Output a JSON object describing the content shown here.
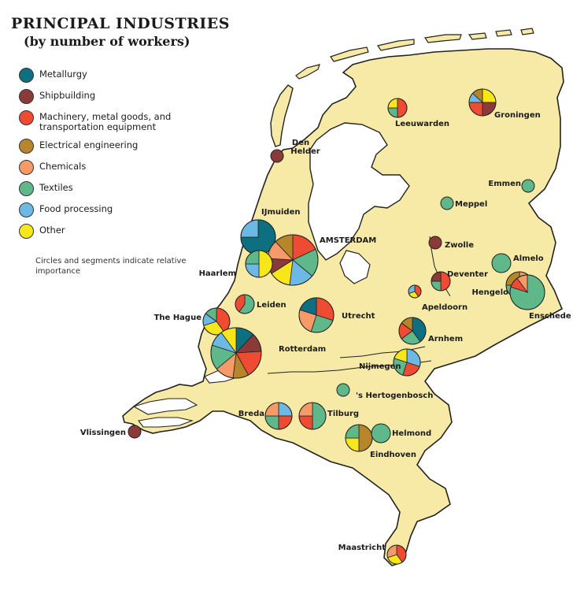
{
  "title": "PRINCIPAL INDUSTRIES",
  "subtitle": "(by number of workers)",
  "legend": {
    "items": [
      {
        "label": "Metallurgy",
        "color": "#0e6f80"
      },
      {
        "label": "Shipbuilding",
        "color": "#8b3a3a"
      },
      {
        "label": "Machinery, metal goods, and transportation equipment",
        "color": "#ef4a32"
      },
      {
        "label": "Electrical engineering",
        "color": "#b8862a"
      },
      {
        "label": "Chemicals",
        "color": "#f59a68"
      },
      {
        "label": "Textiles",
        "color": "#5fb88a"
      },
      {
        "label": "Food processing",
        "color": "#6cb9e6"
      },
      {
        "label": "Other",
        "color": "#f7e61a"
      }
    ],
    "note": "Circles and segments indicate relative importance"
  },
  "map_colors": {
    "land": "#f6eaa6",
    "water": "#ffffff",
    "border": "#222222"
  },
  "cities": [
    {
      "name": "Groningen",
      "size": "medium",
      "segments": [
        [
          "Other",
          25
        ],
        [
          "Shipbuilding",
          25
        ],
        [
          "Machinery, metal goods, and transportation equipment",
          25
        ],
        [
          "Food processing",
          12
        ],
        [
          "Electrical engineering",
          13
        ]
      ]
    },
    {
      "name": "Leeuwarden",
      "size": "small",
      "segments": [
        [
          "Machinery, metal goods, and transportation equipment",
          50
        ],
        [
          "Textiles",
          25
        ],
        [
          "Other",
          25
        ]
      ]
    },
    {
      "name": "Den Helder",
      "size": "tiny",
      "segments": [
        [
          "Shipbuilding",
          100
        ]
      ]
    },
    {
      "name": "Emmen",
      "size": "tiny",
      "segments": [
        [
          "Textiles",
          100
        ]
      ]
    },
    {
      "name": "Meppel",
      "size": "tiny",
      "segments": [
        [
          "Textiles",
          100
        ]
      ]
    },
    {
      "name": "Zwolle",
      "size": "tiny",
      "segments": [
        [
          "Shipbuilding",
          100
        ]
      ]
    },
    {
      "name": "Almelo",
      "size": "small",
      "segments": [
        [
          "Textiles",
          100
        ]
      ]
    },
    {
      "name": "Deventer",
      "size": "small",
      "segments": [
        [
          "Machinery, metal goods, and transportation equipment",
          50
        ],
        [
          "Textiles",
          25
        ],
        [
          "Shipbuilding",
          25
        ]
      ]
    },
    {
      "name": "Hengelo",
      "size": "medium",
      "segments": [
        [
          "Chemicals",
          30
        ],
        [
          "Textiles",
          45
        ],
        [
          "Electrical engineering",
          25
        ]
      ]
    },
    {
      "name": "Enschede",
      "size": "large",
      "segments": [
        [
          "Textiles",
          80
        ],
        [
          "Machinery, metal goods, and transportation equipment",
          10
        ],
        [
          "Chemicals",
          10
        ]
      ]
    },
    {
      "name": "Apeldoorn",
      "size": "tiny",
      "segments": [
        [
          "Machinery, metal goods, and transportation equipment",
          40
        ],
        [
          "Other",
          30
        ],
        [
          "Food processing",
          30
        ]
      ]
    },
    {
      "name": "Arnhem",
      "size": "medium",
      "segments": [
        [
          "Metallurgy",
          40
        ],
        [
          "Textiles",
          25
        ],
        [
          "Machinery, metal goods, and transportation equipment",
          20
        ],
        [
          "Electrical engineering",
          15
        ]
      ]
    },
    {
      "name": "Nijmegen",
      "size": "medium",
      "segments": [
        [
          "Food processing",
          30
        ],
        [
          "Machinery, metal goods, and transportation equipment",
          25
        ],
        [
          "Textiles",
          25
        ],
        [
          "Other",
          20
        ]
      ]
    },
    {
      "name": "Utrecht",
      "size": "large",
      "segments": [
        [
          "Machinery, metal goods, and transportation equipment",
          30
        ],
        [
          "Textiles",
          25
        ],
        [
          "Chemicals",
          25
        ],
        [
          "Metallurgy",
          20
        ]
      ]
    },
    {
      "name": "IJmuiden",
      "size": "large",
      "segments": [
        [
          "Metallurgy",
          75
        ],
        [
          "Food processing",
          25
        ]
      ]
    },
    {
      "name": "AMSTERDAM",
      "size": "xlarge",
      "segments": [
        [
          "Machinery, metal goods, and transportation equipment",
          18
        ],
        [
          "Textiles",
          18
        ],
        [
          "Food processing",
          16
        ],
        [
          "Other",
          14
        ],
        [
          "Shipbuilding",
          10
        ],
        [
          "Chemicals",
          12
        ],
        [
          "Electrical engineering",
          12
        ]
      ]
    },
    {
      "name": "Haarlem",
      "size": "medium",
      "segments": [
        [
          "Other",
          50
        ],
        [
          "Food processing",
          25
        ],
        [
          "Textiles",
          25
        ]
      ]
    },
    {
      "name": "Leiden",
      "size": "small",
      "segments": [
        [
          "Textiles",
          60
        ],
        [
          "Machinery, metal goods, and transportation equipment",
          40
        ]
      ]
    },
    {
      "name": "The Hague",
      "size": "medium",
      "segments": [
        [
          "Machinery, metal goods, and transportation equipment",
          40
        ],
        [
          "Other",
          30
        ],
        [
          "Food processing",
          15
        ],
        [
          "Textiles",
          15
        ]
      ]
    },
    {
      "name": "Rotterdam",
      "size": "xlarge",
      "segments": [
        [
          "Metallurgy",
          12
        ],
        [
          "Shipbuilding",
          12
        ],
        [
          "Machinery, metal goods, and transportation equipment",
          18
        ],
        [
          "Electrical engineering",
          10
        ],
        [
          "Chemicals",
          12
        ],
        [
          "Textiles",
          16
        ],
        [
          "Food processing",
          10
        ],
        [
          "Other",
          10
        ]
      ]
    },
    {
      "name": "'s Hertogenbosch",
      "size": "tiny",
      "segments": [
        [
          "Textiles",
          100
        ]
      ]
    },
    {
      "name": "Breda",
      "size": "medium",
      "segments": [
        [
          "Food processing",
          25
        ],
        [
          "Machinery, metal goods, and transportation equipment",
          25
        ],
        [
          "Textiles",
          25
        ],
        [
          "Chemicals",
          25
        ]
      ]
    },
    {
      "name": "Tilburg",
      "size": "medium",
      "segments": [
        [
          "Textiles",
          50
        ],
        [
          "Machinery, metal goods, and transportation equipment",
          25
        ],
        [
          "Chemicals",
          25
        ]
      ]
    },
    {
      "name": "Vlissingen",
      "size": "tiny",
      "segments": [
        [
          "Shipbuilding",
          100
        ]
      ]
    },
    {
      "name": "Eindhoven",
      "size": "medium",
      "segments": [
        [
          "Electrical engineering",
          50
        ],
        [
          "Other",
          25
        ],
        [
          "Textiles",
          25
        ]
      ]
    },
    {
      "name": "Helmond",
      "size": "small",
      "segments": [
        [
          "Textiles",
          100
        ]
      ]
    },
    {
      "name": "Maastricht",
      "size": "small",
      "segments": [
        [
          "Machinery, metal goods, and transportation equipment",
          40
        ],
        [
          "Other",
          30
        ],
        [
          "Chemicals",
          30
        ]
      ]
    }
  ]
}
